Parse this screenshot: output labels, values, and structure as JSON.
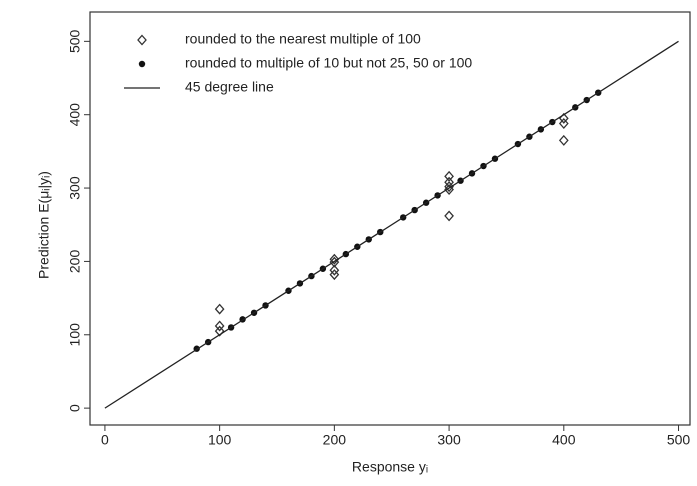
{
  "chart_data": {
    "type": "scatter",
    "xlabel": "Response yᵢ",
    "ylabel": "Prediction E(μᵢ|yᵢ)",
    "xlim": [
      -13,
      510
    ],
    "ylim": [
      -23,
      540
    ],
    "xticks": [
      0,
      100,
      200,
      300,
      400,
      500
    ],
    "yticks": [
      0,
      100,
      200,
      300,
      400,
      500
    ],
    "grid": false,
    "legend": "top-left",
    "series": [
      {
        "name": "rounded to the nearest multiple of 100",
        "marker": "diamond",
        "color": "#333333",
        "x": [
          100,
          100,
          100,
          200,
          200,
          200,
          200,
          300,
          300,
          300,
          300,
          300,
          400,
          400,
          400
        ],
        "values": [
          135,
          112,
          105,
          203,
          199,
          188,
          182,
          316,
          308,
          302,
          298,
          262,
          395,
          388,
          365
        ]
      },
      {
        "name": "rounded to multiple of 10 but not 25, 50 or 100",
        "marker": "dot",
        "color": "#111111",
        "x": [
          80,
          90,
          110,
          120,
          130,
          140,
          160,
          170,
          180,
          190,
          210,
          220,
          230,
          240,
          260,
          270,
          280,
          290,
          310,
          320,
          330,
          340,
          360,
          370,
          380,
          390,
          410,
          420,
          430
        ],
        "values": [
          81,
          90,
          110,
          121,
          130,
          140,
          160,
          170,
          180,
          190,
          210,
          220,
          230,
          240,
          260,
          270,
          280,
          290,
          310,
          320,
          330,
          340,
          360,
          370,
          380,
          390,
          410,
          420,
          430
        ]
      },
      {
        "name": "45 degree line",
        "marker": "line",
        "color": "#222222",
        "x": [
          0,
          500
        ],
        "values": [
          0,
          500
        ]
      }
    ]
  }
}
